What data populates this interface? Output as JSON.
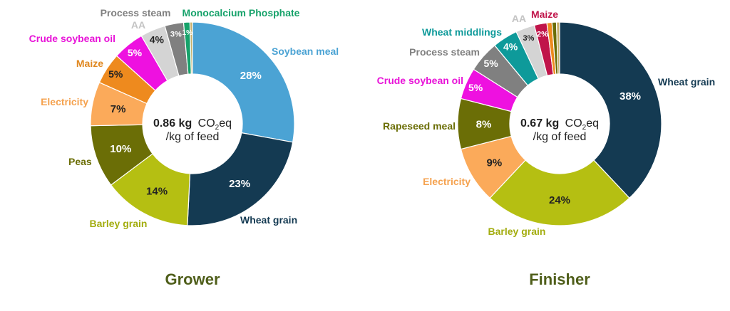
{
  "chart_data": [
    {
      "type": "pie",
      "title": "Grower",
      "center_value": "0.86 kg",
      "center_unit_prefix": "CO",
      "center_unit_sub": "2",
      "center_unit_suffix": "eq",
      "center_line2": "/kg of feed",
      "slices": [
        {
          "name": "Soybean meal",
          "value": 28,
          "label": "28%",
          "color": "#4ba3d4",
          "pct_color": "#ffffff",
          "name_color": "#4ba3d4"
        },
        {
          "name": "Wheat grain",
          "value": 23,
          "label": "23%",
          "color": "#143a52",
          "pct_color": "#ffffff",
          "name_color": "#143a52"
        },
        {
          "name": "Barley grain",
          "value": 14,
          "label": "14%",
          "color": "#b5bf12",
          "pct_color": "#222222",
          "name_color": "#a3ad0f"
        },
        {
          "name": "Peas",
          "value": 10,
          "label": "10%",
          "color": "#6b6e06",
          "pct_color": "#ffffff",
          "name_color": "#6b6e06"
        },
        {
          "name": "Electricity",
          "value": 7,
          "label": "7%",
          "color": "#fbaa5a",
          "pct_color": "#222222",
          "name_color": "#f5a24f"
        },
        {
          "name": "Maize",
          "value": 5,
          "label": "5%",
          "color": "#ee8a1e",
          "pct_color": "#222222",
          "name_color": "#e08820"
        },
        {
          "name": "Crude soybean oil",
          "value": 5,
          "label": "5%",
          "color": "#ee11e0",
          "pct_color": "#ffffff",
          "name_color": "#e814d8"
        },
        {
          "name": "AA",
          "value": 4,
          "label": "4%",
          "color": "#d4d4d4",
          "pct_color": "#222222",
          "name_color": "#c4c4c4"
        },
        {
          "name": "Process steam",
          "value": 3,
          "label": "3%",
          "color": "#808080",
          "pct_color": "#ffffff",
          "name_color": "#808080"
        },
        {
          "name": "Monocalcium Phosphate",
          "value": 1,
          "label": "1%",
          "color": "#16a26a",
          "pct_color": "#ffffff",
          "name_color": "#16a26a"
        },
        {
          "name": "",
          "value": 0.4,
          "label": "",
          "color": "#c7b06a",
          "pct_color": "#ffffff",
          "name_color": "#c7b06a"
        }
      ]
    },
    {
      "type": "pie",
      "title": "Finisher",
      "center_value": "0.67 kg",
      "center_unit_prefix": "CO",
      "center_unit_sub": "2",
      "center_unit_suffix": "eq",
      "center_line2": "/kg of feed",
      "slices": [
        {
          "name": "Wheat grain",
          "value": 38,
          "label": "38%",
          "color": "#143a52",
          "pct_color": "#ffffff",
          "name_color": "#143a52"
        },
        {
          "name": "Barley grain",
          "value": 24,
          "label": "24%",
          "color": "#b5bf12",
          "pct_color": "#222222",
          "name_color": "#a3ad0f"
        },
        {
          "name": "Electricity",
          "value": 9,
          "label": "9%",
          "color": "#fbaa5a",
          "pct_color": "#222222",
          "name_color": "#f5a24f"
        },
        {
          "name": "Rapeseed meal",
          "value": 8,
          "label": "8%",
          "color": "#6b6e06",
          "pct_color": "#ffffff",
          "name_color": "#6b6e06"
        },
        {
          "name": "Crude soybean oil",
          "value": 5,
          "label": "5%",
          "color": "#ee11e0",
          "pct_color": "#ffffff",
          "name_color": "#e814d8"
        },
        {
          "name": "Process steam",
          "value": 5,
          "label": "5%",
          "color": "#808080",
          "pct_color": "#ffffff",
          "name_color": "#808080"
        },
        {
          "name": "Wheat middlings",
          "value": 4,
          "label": "4%",
          "color": "#0e9a9a",
          "pct_color": "#ffffff",
          "name_color": "#0e9a9a"
        },
        {
          "name": "AA",
          "value": 3,
          "label": "3%",
          "color": "#d4d4d4",
          "pct_color": "#222222",
          "name_color": "#c4c4c4"
        },
        {
          "name": "Maize",
          "value": 2,
          "label": "2%",
          "color": "#c0144a",
          "pct_color": "#ffffff",
          "name_color": "#c0144a"
        },
        {
          "name": "",
          "value": 0.8,
          "label": "",
          "color": "#ee8a1e",
          "pct_color": "#ffffff",
          "name_color": "#ee8a1e"
        },
        {
          "name": "",
          "value": 0.7,
          "label": "",
          "color": "#6b6e06",
          "pct_color": "#ffffff",
          "name_color": "#6b6e06"
        },
        {
          "name": "",
          "value": 0.5,
          "label": "",
          "color": "#c7b06a",
          "pct_color": "#ffffff",
          "name_color": "#c7b06a"
        }
      ]
    }
  ]
}
